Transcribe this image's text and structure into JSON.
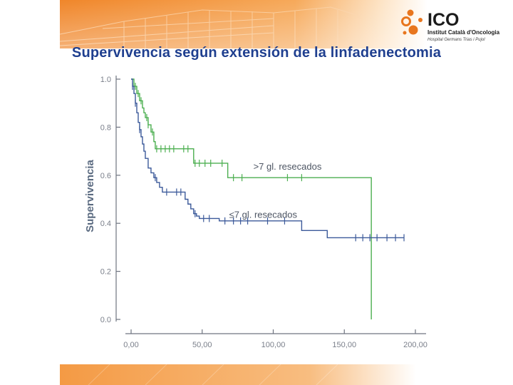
{
  "slide": {
    "title": "Supervivencia según extensión de la linfadenectomia"
  },
  "logo": {
    "name": "ICO",
    "line1": "Institut Català d'Oncologia",
    "line2": "Hospital Germans Trias i Pujol",
    "colors": {
      "orange": "#e8761e",
      "text": "#1b1b1b"
    }
  },
  "theme": {
    "banner_color": "#f08a2e",
    "footer_color": "#f5a04a"
  },
  "chart_data": {
    "type": "line",
    "subtype": "kaplan-meier step curves",
    "ylabel": "Supervivencia",
    "xlabel": "",
    "xlim": [
      0,
      200
    ],
    "ylim": [
      0,
      1
    ],
    "x_ticks": [
      "0,00",
      "50,00",
      "100,00",
      "150,00",
      "200,00"
    ],
    "x_tick_values": [
      0,
      50,
      100,
      150,
      200
    ],
    "y_ticks": [
      "0.0",
      "0.2",
      "0.4",
      "0.6",
      "0.8",
      "1.0"
    ],
    "y_tick_values": [
      0,
      0.2,
      0.4,
      0.6,
      0.8,
      1.0
    ],
    "grid": false,
    "series": [
      {
        "name": ">7 gl. resecados",
        "color": "#4caf50",
        "steps": [
          [
            0,
            1.0
          ],
          [
            2,
            0.97
          ],
          [
            4,
            0.94
          ],
          [
            6,
            0.91
          ],
          [
            8,
            0.88
          ],
          [
            9,
            0.86
          ],
          [
            10,
            0.84
          ],
          [
            12,
            0.81
          ],
          [
            14,
            0.78
          ],
          [
            16,
            0.74
          ],
          [
            17,
            0.71
          ],
          [
            43,
            0.71
          ],
          [
            44,
            0.65
          ],
          [
            67,
            0.65
          ],
          [
            68,
            0.59
          ],
          [
            168,
            0.59
          ],
          [
            169,
            0.0
          ]
        ],
        "censored": [
          [
            3,
            0.97
          ],
          [
            5,
            0.94
          ],
          [
            7,
            0.91
          ],
          [
            11,
            0.84
          ],
          [
            12,
            0.81
          ],
          [
            15,
            0.78
          ],
          [
            18,
            0.71
          ],
          [
            21,
            0.71
          ],
          [
            24,
            0.71
          ],
          [
            27,
            0.71
          ],
          [
            30,
            0.71
          ],
          [
            37,
            0.71
          ],
          [
            40,
            0.71
          ],
          [
            45,
            0.65
          ],
          [
            48,
            0.65
          ],
          [
            52,
            0.65
          ],
          [
            56,
            0.65
          ],
          [
            64,
            0.65
          ],
          [
            72,
            0.59
          ],
          [
            78,
            0.59
          ],
          [
            110,
            0.59
          ],
          [
            120,
            0.59
          ]
        ]
      },
      {
        "name": "≤7 gl. resecados",
        "color": "#3c5a9a",
        "steps": [
          [
            0,
            1.0
          ],
          [
            1,
            0.97
          ],
          [
            2,
            0.94
          ],
          [
            3,
            0.9
          ],
          [
            4,
            0.86
          ],
          [
            5,
            0.82
          ],
          [
            6,
            0.79
          ],
          [
            7,
            0.76
          ],
          [
            8,
            0.73
          ],
          [
            9,
            0.7
          ],
          [
            10,
            0.67
          ],
          [
            12,
            0.63
          ],
          [
            14,
            0.61
          ],
          [
            16,
            0.59
          ],
          [
            18,
            0.57
          ],
          [
            20,
            0.55
          ],
          [
            22,
            0.53
          ],
          [
            36,
            0.53
          ],
          [
            38,
            0.5
          ],
          [
            40,
            0.48
          ],
          [
            42,
            0.46
          ],
          [
            44,
            0.44
          ],
          [
            46,
            0.43
          ],
          [
            48,
            0.42
          ],
          [
            60,
            0.42
          ],
          [
            62,
            0.41
          ],
          [
            119,
            0.41
          ],
          [
            120,
            0.37
          ],
          [
            137,
            0.37
          ],
          [
            138,
            0.34
          ],
          [
            192,
            0.34
          ]
        ],
        "censored": [
          [
            1,
            0.97
          ],
          [
            3,
            0.9
          ],
          [
            6,
            0.79
          ],
          [
            17,
            0.59
          ],
          [
            25,
            0.53
          ],
          [
            32,
            0.53
          ],
          [
            35,
            0.53
          ],
          [
            45,
            0.44
          ],
          [
            51,
            0.42
          ],
          [
            55,
            0.42
          ],
          [
            66,
            0.41
          ],
          [
            72,
            0.41
          ],
          [
            77,
            0.41
          ],
          [
            82,
            0.41
          ],
          [
            96,
            0.41
          ],
          [
            108,
            0.41
          ],
          [
            158,
            0.34
          ],
          [
            163,
            0.34
          ],
          [
            168,
            0.34
          ],
          [
            173,
            0.34
          ],
          [
            180,
            0.34
          ],
          [
            186,
            0.34
          ],
          [
            192,
            0.34
          ]
        ]
      }
    ],
    "annotations": [
      {
        "text": ">7 gl. resecados",
        "x": 86,
        "y": 0.635
      },
      {
        "text": "≤7 gl. resecados",
        "x": 69,
        "y": 0.435
      }
    ]
  }
}
